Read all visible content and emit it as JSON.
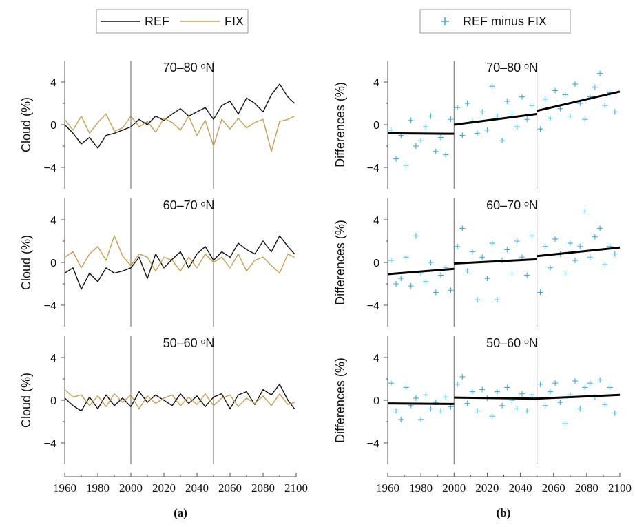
{
  "chart_data": [
    {
      "type": "line",
      "panel": "a",
      "caption": "(a)",
      "legend": [
        {
          "name": "REF",
          "color": "#111111"
        },
        {
          "name": "FIX",
          "color": "#c8a04a"
        }
      ],
      "legend_placement": "top-center",
      "ylabel": "Cloud (%)",
      "xlim": [
        1960,
        2100
      ],
      "ylim": [
        -6,
        6
      ],
      "x_ticks": [
        "1960",
        "1980",
        "2000",
        "2020",
        "2040",
        "2060",
        "2080",
        "2100"
      ],
      "y_ticks": [
        "4",
        "0",
        "−4"
      ],
      "vertical_lines": [
        2000,
        2050
      ],
      "rows": [
        {
          "title": "70–80 ᵒN",
          "x": [
            1960,
            1965,
            1970,
            1975,
            1980,
            1985,
            1990,
            1995,
            2000,
            2005,
            2010,
            2015,
            2020,
            2025,
            2030,
            2035,
            2040,
            2045,
            2050,
            2055,
            2060,
            2065,
            2070,
            2075,
            2080,
            2085,
            2090,
            2095,
            2099
          ],
          "series": [
            {
              "name": "REF",
              "values": [
                0,
                -0.8,
                -1.8,
                -1.2,
                -2.2,
                -1.0,
                -0.8,
                -0.5,
                -0.2,
                0.5,
                0.0,
                0.8,
                0.4,
                1.0,
                1.5,
                0.8,
                1.2,
                1.6,
                0.5,
                1.8,
                2.2,
                1.0,
                2.5,
                2.0,
                1.2,
                2.8,
                3.8,
                2.6,
                2.0
              ]
            },
            {
              "name": "FIX",
              "values": [
                0.5,
                -0.5,
                0.8,
                -0.8,
                0.2,
                1.0,
                -0.6,
                -0.3,
                0.8,
                -0.2,
                0.3,
                -0.7,
                0.6,
                0.2,
                -0.5,
                0.8,
                -1.0,
                0.4,
                -2.0,
                0.5,
                -0.4,
                0.6,
                -0.3,
                0.2,
                0.5,
                -2.5,
                0.3,
                0.5,
                0.8
              ]
            }
          ]
        },
        {
          "title": "60–70 ᵒN",
          "x": [
            1960,
            1965,
            1970,
            1975,
            1980,
            1985,
            1990,
            1995,
            2000,
            2005,
            2010,
            2015,
            2020,
            2025,
            2030,
            2035,
            2040,
            2045,
            2050,
            2055,
            2060,
            2065,
            2070,
            2075,
            2080,
            2085,
            2090,
            2095,
            2099
          ],
          "series": [
            {
              "name": "REF",
              "values": [
                -1.0,
                -0.5,
                -2.5,
                -1.0,
                -1.8,
                -0.5,
                -1.0,
                -0.8,
                -0.5,
                0.5,
                -1.5,
                0.8,
                -0.5,
                0.3,
                1.0,
                -0.5,
                0.8,
                1.5,
                0.2,
                1.0,
                0.5,
                1.8,
                1.2,
                0.8,
                2.0,
                1.0,
                2.5,
                1.5,
                0.8
              ]
            },
            {
              "name": "FIX",
              "values": [
                0.5,
                1.0,
                -0.5,
                0.8,
                1.5,
                0.2,
                2.5,
                0.6,
                -0.3,
                0.8,
                0.5,
                -0.8,
                0.5,
                0.2,
                -0.8,
                0.5,
                -0.5,
                0.8,
                0.0,
                0.5,
                -0.5,
                0.8,
                -0.8,
                0.2,
                0.5,
                -0.3,
                -1.0,
                0.8,
                0.5
              ]
            }
          ]
        },
        {
          "title": "50–60 ᵒN",
          "x": [
            1960,
            1965,
            1970,
            1975,
            1980,
            1985,
            1990,
            1995,
            2000,
            2005,
            2010,
            2015,
            2020,
            2025,
            2030,
            2035,
            2040,
            2045,
            2050,
            2055,
            2060,
            2065,
            2070,
            2075,
            2080,
            2085,
            2090,
            2095,
            2099
          ],
          "series": [
            {
              "name": "REF",
              "values": [
                0.2,
                -0.5,
                -1.0,
                0.3,
                -0.8,
                0.5,
                -0.5,
                0.2,
                -0.6,
                0.8,
                -0.2,
                0.5,
                0.0,
                -0.5,
                0.6,
                -0.3,
                0.4,
                -0.6,
                0.3,
                0.6,
                -0.8,
                0.5,
                0.8,
                -0.4,
                1.0,
                0.5,
                1.5,
                0.0,
                -0.8
              ]
            },
            {
              "name": "FIX",
              "values": [
                1.0,
                0.3,
                0.5,
                -0.5,
                0.4,
                -0.6,
                0.6,
                -0.2,
                0.5,
                -0.8,
                0.4,
                -0.3,
                0.2,
                0.5,
                -0.5,
                0.3,
                -0.4,
                0.6,
                -0.5,
                0.2,
                0.5,
                -0.6,
                0.2,
                -0.3,
                0.4,
                -0.5,
                0.6,
                -0.4,
                -0.2
              ]
            }
          ]
        }
      ]
    },
    {
      "type": "scatter",
      "panel": "b",
      "caption": "(b)",
      "legend": [
        {
          "name": "REF minus FIX",
          "color": "#29b6e8",
          "marker": "+"
        }
      ],
      "legend_placement": "top-center",
      "ylabel": "Differences (%)",
      "xlim": [
        1960,
        2100
      ],
      "ylim": [
        -6,
        6
      ],
      "x_ticks": [
        "1960",
        "1980",
        "2000",
        "2020",
        "2040",
        "2060",
        "2080",
        "2100"
      ],
      "y_ticks": [
        "4",
        "0",
        "−4"
      ],
      "vertical_lines": [
        2000,
        2050
      ],
      "rows": [
        {
          "title": "70–80 ᵒN",
          "points": {
            "x": [
              1962,
              1965,
              1968,
              1971,
              1974,
              1977,
              1980,
              1983,
              1986,
              1989,
              1992,
              1995,
              1998,
              2002,
              2005,
              2008,
              2011,
              2014,
              2017,
              2020,
              2023,
              2026,
              2029,
              2032,
              2035,
              2038,
              2041,
              2044,
              2047,
              2052,
              2055,
              2058,
              2061,
              2064,
              2067,
              2070,
              2073,
              2076,
              2079,
              2082,
              2085,
              2088,
              2091,
              2094,
              2097
            ],
            "y": [
              -0.5,
              -3.2,
              -1.0,
              -3.8,
              0.4,
              -2.0,
              -1.5,
              -0.2,
              0.8,
              -2.5,
              -1.2,
              -2.8,
              0.5,
              1.6,
              -1.0,
              2.0,
              0.3,
              -0.8,
              1.2,
              -0.5,
              3.6,
              0.8,
              -1.5,
              2.2,
              1.0,
              -0.2,
              2.6,
              0.5,
              1.8,
              -0.4,
              2.4,
              0.6,
              3.2,
              1.5,
              2.8,
              0.8,
              3.8,
              2.0,
              0.5,
              2.6,
              3.5,
              4.8,
              1.8,
              3.0,
              1.2
            ]
          },
          "trends": [
            {
              "x": [
                1960,
                2000
              ],
              "y": [
                -0.8,
                -0.85
              ]
            },
            {
              "x": [
                2000,
                2050
              ],
              "y": [
                0.0,
                1.0
              ]
            },
            {
              "x": [
                2050,
                2100
              ],
              "y": [
                1.3,
                3.1
              ]
            }
          ]
        },
        {
          "title": "60–70 ᵒN",
          "points": {
            "x": [
              1962,
              1965,
              1968,
              1971,
              1974,
              1977,
              1980,
              1983,
              1986,
              1989,
              1992,
              1995,
              1998,
              2002,
              2005,
              2008,
              2011,
              2014,
              2017,
              2020,
              2023,
              2026,
              2029,
              2032,
              2035,
              2038,
              2041,
              2044,
              2047,
              2052,
              2055,
              2058,
              2061,
              2064,
              2067,
              2070,
              2073,
              2076,
              2079,
              2082,
              2085,
              2088,
              2091,
              2094,
              2097
            ],
            "y": [
              0.2,
              -2.0,
              -1.5,
              0.5,
              -2.2,
              2.5,
              -1.0,
              -1.8,
              0.0,
              -2.8,
              -1.2,
              -0.5,
              -2.6,
              1.5,
              3.2,
              -0.8,
              1.0,
              -3.5,
              0.5,
              -1.5,
              1.8,
              -3.5,
              0.2,
              1.2,
              -1.0,
              2.0,
              0.5,
              -1.2,
              2.5,
              -2.8,
              1.5,
              -0.5,
              2.2,
              0.8,
              -1.0,
              1.8,
              0.2,
              1.5,
              4.8,
              0.5,
              2.4,
              3.2,
              -0.2,
              1.5,
              0.8
            ]
          },
          "trends": [
            {
              "x": [
                1960,
                2000
              ],
              "y": [
                -1.1,
                -0.6
              ]
            },
            {
              "x": [
                2000,
                2050
              ],
              "y": [
                -0.1,
                0.3
              ]
            },
            {
              "x": [
                2050,
                2100
              ],
              "y": [
                0.6,
                1.4
              ]
            }
          ]
        },
        {
          "title": "50–60 ᵒN",
          "points": {
            "x": [
              1962,
              1965,
              1968,
              1971,
              1974,
              1977,
              1980,
              1983,
              1986,
              1989,
              1992,
              1995,
              1998,
              2002,
              2005,
              2008,
              2011,
              2014,
              2017,
              2020,
              2023,
              2026,
              2029,
              2032,
              2035,
              2038,
              2041,
              2044,
              2047,
              2052,
              2055,
              2058,
              2061,
              2064,
              2067,
              2070,
              2073,
              2076,
              2079,
              2082,
              2085,
              2088,
              2091,
              2094,
              2097
            ],
            "y": [
              1.6,
              -1.0,
              -1.8,
              1.2,
              -0.5,
              0.2,
              -1.8,
              0.5,
              -0.8,
              -0.2,
              -1.0,
              0.3,
              -0.6,
              1.5,
              2.2,
              -0.3,
              0.8,
              -1.0,
              1.0,
              0.2,
              -1.5,
              0.8,
              -0.5,
              1.2,
              0.0,
              -0.8,
              0.6,
              -1.0,
              0.5,
              1.5,
              -0.5,
              0.8,
              1.6,
              -0.2,
              -2.2,
              0.5,
              1.8,
              -0.8,
              1.2,
              1.6,
              0.3,
              1.9,
              -0.4,
              1.2,
              -1.2
            ]
          },
          "trends": [
            {
              "x": [
                1960,
                2000
              ],
              "y": [
                -0.3,
                -0.35
              ]
            },
            {
              "x": [
                2000,
                2050
              ],
              "y": [
                0.25,
                0.15
              ]
            },
            {
              "x": [
                2050,
                2100
              ],
              "y": [
                0.15,
                0.5
              ]
            }
          ]
        }
      ]
    }
  ]
}
